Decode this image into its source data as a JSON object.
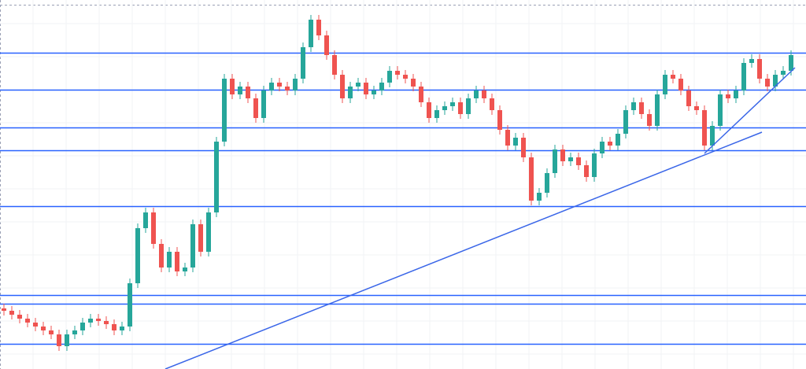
{
  "chart_data": {
    "type": "candlestick",
    "open": [
      77,
      74,
      69,
      64,
      59,
      54,
      49,
      44,
      29,
      44,
      49,
      59,
      64,
      61,
      57,
      49,
      54,
      109,
      179,
      199,
      159,
      129,
      149,
      124,
      129,
      184,
      149,
      199,
      289,
      369,
      349,
      359,
      344,
      319,
      354,
      364,
      359,
      354,
      369,
      409,
      444,
      424,
      399,
      374,
      344,
      359,
      364,
      349,
      354,
      364,
      379,
      374,
      369,
      359,
      339,
      319,
      329,
      334,
      339,
      324,
      344,
      354,
      344,
      329,
      304,
      284,
      294,
      269,
      214,
      224,
      249,
      279,
      264,
      269,
      259,
      244,
      274,
      289,
      284,
      299,
      329,
      339,
      324,
      309,
      349,
      374,
      369,
      354,
      334,
      329,
      284,
      309,
      349,
      344,
      354,
      389,
      394,
      369,
      359,
      374,
      379
    ],
    "high": [
      83,
      80,
      75,
      70,
      65,
      60,
      55,
      50,
      50,
      55,
      65,
      70,
      70,
      67,
      63,
      60,
      115,
      185,
      205,
      205,
      165,
      155,
      155,
      135,
      190,
      190,
      205,
      295,
      375,
      375,
      365,
      365,
      350,
      360,
      370,
      370,
      365,
      375,
      415,
      450,
      450,
      430,
      405,
      380,
      365,
      370,
      370,
      360,
      370,
      385,
      385,
      380,
      375,
      365,
      345,
      335,
      340,
      345,
      345,
      350,
      360,
      360,
      350,
      335,
      310,
      300,
      300,
      275,
      230,
      255,
      285,
      285,
      275,
      275,
      265,
      280,
      295,
      295,
      305,
      335,
      345,
      345,
      330,
      355,
      380,
      380,
      375,
      360,
      340,
      335,
      315,
      355,
      355,
      360,
      395,
      400,
      400,
      375,
      380,
      385,
      405
    ],
    "low": [
      68,
      63,
      58,
      53,
      48,
      43,
      38,
      23,
      23,
      38,
      43,
      53,
      55,
      51,
      43,
      43,
      48,
      103,
      173,
      153,
      123,
      123,
      118,
      118,
      123,
      143,
      143,
      193,
      283,
      343,
      343,
      338,
      313,
      313,
      348,
      353,
      348,
      348,
      363,
      403,
      418,
      393,
      368,
      338,
      338,
      353,
      343,
      343,
      348,
      358,
      368,
      363,
      353,
      333,
      313,
      313,
      323,
      328,
      318,
      318,
      338,
      338,
      323,
      298,
      278,
      278,
      263,
      208,
      208,
      218,
      243,
      258,
      258,
      253,
      238,
      238,
      268,
      278,
      278,
      293,
      323,
      318,
      303,
      303,
      343,
      363,
      348,
      328,
      323,
      278,
      278,
      303,
      338,
      338,
      348,
      383,
      363,
      353,
      353,
      368,
      373
    ],
    "close": [
      74,
      69,
      64,
      59,
      54,
      49,
      44,
      29,
      44,
      49,
      59,
      64,
      61,
      57,
      49,
      54,
      109,
      179,
      199,
      159,
      129,
      149,
      124,
      129,
      184,
      149,
      199,
      289,
      369,
      349,
      359,
      344,
      319,
      354,
      364,
      359,
      354,
      369,
      409,
      444,
      424,
      399,
      374,
      344,
      359,
      364,
      349,
      354,
      364,
      379,
      374,
      369,
      359,
      339,
      319,
      329,
      334,
      339,
      324,
      344,
      354,
      344,
      329,
      304,
      284,
      294,
      269,
      214,
      224,
      249,
      279,
      264,
      269,
      259,
      244,
      274,
      289,
      284,
      299,
      329,
      339,
      324,
      309,
      349,
      374,
      369,
      354,
      334,
      329,
      284,
      309,
      349,
      344,
      354,
      389,
      394,
      369,
      359,
      374,
      379,
      399
    ],
    "up_color": "#26a69a",
    "down_color": "#ef5350",
    "levels": [
      402,
      355,
      307,
      278,
      207,
      94,
      83,
      32
    ],
    "level_color": "#2962ff",
    "ylim": [
      0,
      469
    ]
  }
}
